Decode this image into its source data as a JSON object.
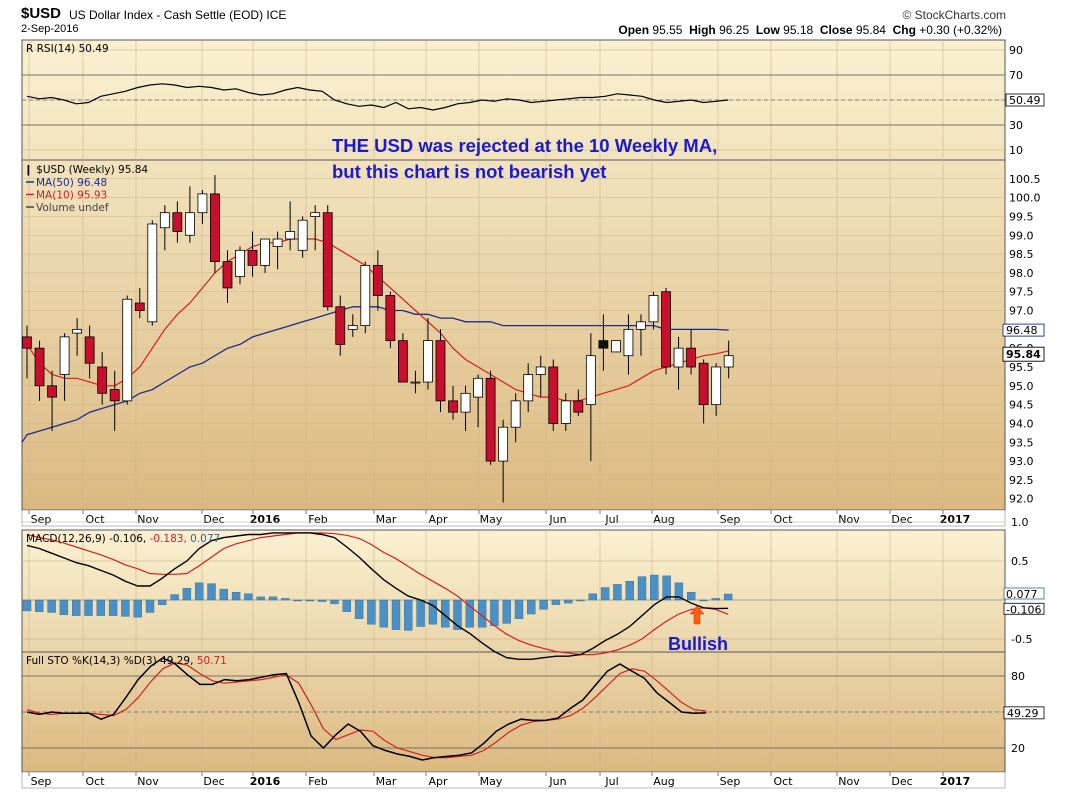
{
  "header": {
    "symbol": "$USD",
    "description": "US Dollar Index - Cash Settle (EOD) ICE",
    "date": "2-Sep-2016",
    "source": "© StockCharts.com",
    "open_label": "Open",
    "open": "95.55",
    "high_label": "High",
    "high": "96.25",
    "low_label": "Low",
    "low": "95.18",
    "close_label": "Close",
    "close": "95.84",
    "chg_label": "Chg",
    "chg": "+0.30 (+0.32%)"
  },
  "annotations": {
    "line1": "THE USD  was rejected at the 10 Weekly MA,",
    "line2": "but this chart is not bearish yet",
    "bullish": "Bullish"
  },
  "colors": {
    "up": "#ffffff",
    "down": "#c8102e",
    "ma50": "#1c2b8f",
    "ma10": "#d42020",
    "histogram": "#4a90c4",
    "panel_top": "#faf1d2",
    "panel_bottom": "#dbb981",
    "annotation": "#1a1ad0",
    "arrow": "#ff5a10"
  },
  "chart_data": [
    {
      "type": "line",
      "title": "RSI(14) 50.49",
      "ylim": [
        0,
        100
      ],
      "yticks": [
        90,
        70,
        50,
        30,
        10
      ],
      "last_value_label": "50.49",
      "y": [
        53,
        51,
        52,
        50,
        47,
        48,
        53,
        55,
        57,
        60,
        62,
        63,
        62,
        60,
        61,
        60,
        58,
        59,
        56,
        54,
        55,
        58,
        60,
        58,
        57,
        50,
        47,
        45,
        46,
        44,
        48,
        43,
        44,
        42,
        44,
        47,
        48,
        50,
        49,
        51,
        50,
        48,
        49,
        50,
        51,
        52,
        52,
        53,
        55,
        54,
        53,
        50,
        48,
        49,
        50,
        48,
        49,
        50
      ]
    },
    {
      "type": "candlestick",
      "title": "$USD (Weekly) 95.84",
      "legend": [
        "MA(50) 96.48",
        "MA(10) 95.93",
        "Volume undef"
      ],
      "ylim": [
        91.7,
        101.0
      ],
      "yticks": [
        100.5,
        100.0,
        99.5,
        99.0,
        98.5,
        98.0,
        97.5,
        97.0,
        96.5,
        96.0,
        95.5,
        95.0,
        94.5,
        94.0,
        93.5,
        93.0,
        92.5,
        92.0
      ],
      "last_value_labels": {
        "ma50": "96.48",
        "close": "95.84"
      },
      "x_months": [
        "Sep",
        "Oct",
        "Nov",
        "Dec",
        "2016",
        "Feb",
        "Mar",
        "Apr",
        "May",
        "Jun",
        "Jul",
        "Aug",
        "Sep",
        "Oct",
        "Nov",
        "Dec",
        "2017"
      ],
      "ohlc": [
        [
          96.3,
          96.6,
          95.2,
          96.0
        ],
        [
          96.0,
          96.2,
          94.6,
          95.0
        ],
        [
          95.0,
          95.4,
          93.8,
          94.7
        ],
        [
          95.3,
          96.4,
          94.6,
          96.3
        ],
        [
          96.4,
          96.8,
          95.8,
          96.5
        ],
        [
          96.3,
          96.6,
          95.2,
          95.6
        ],
        [
          95.5,
          95.9,
          94.5,
          94.8
        ],
        [
          94.9,
          95.4,
          93.8,
          94.6
        ],
        [
          94.6,
          97.4,
          94.5,
          97.3
        ],
        [
          97.2,
          97.6,
          96.8,
          97.0
        ],
        [
          96.7,
          99.4,
          96.6,
          99.3
        ],
        [
          99.2,
          99.8,
          98.6,
          99.6
        ],
        [
          99.6,
          99.9,
          98.8,
          99.1
        ],
        [
          99.0,
          100.3,
          98.8,
          99.6
        ],
        [
          99.6,
          100.2,
          99.3,
          100.1
        ],
        [
          100.1,
          100.6,
          98.0,
          98.3
        ],
        [
          98.3,
          98.6,
          97.2,
          97.6
        ],
        [
          97.9,
          98.7,
          97.7,
          98.6
        ],
        [
          98.6,
          99.1,
          97.9,
          98.2
        ],
        [
          98.2,
          98.9,
          98.0,
          98.9
        ],
        [
          98.7,
          99.1,
          98.1,
          98.9
        ],
        [
          98.9,
          99.9,
          98.6,
          99.1
        ],
        [
          98.6,
          99.5,
          98.4,
          99.4
        ],
        [
          99.5,
          99.8,
          98.6,
          99.6
        ],
        [
          99.6,
          99.8,
          97.0,
          97.1
        ],
        [
          97.1,
          97.4,
          95.8,
          96.1
        ],
        [
          96.5,
          96.9,
          96.3,
          96.6
        ],
        [
          96.6,
          98.3,
          96.4,
          98.2
        ],
        [
          98.2,
          98.6,
          97.0,
          97.4
        ],
        [
          97.4,
          97.5,
          96.0,
          96.2
        ],
        [
          96.2,
          96.4,
          95.1,
          95.1
        ],
        [
          95.1,
          95.4,
          94.8,
          95.1
        ],
        [
          95.1,
          96.8,
          94.9,
          96.2
        ],
        [
          96.2,
          96.5,
          94.3,
          94.6
        ],
        [
          94.6,
          95.0,
          94.1,
          94.3
        ],
        [
          94.3,
          95.0,
          93.8,
          94.8
        ],
        [
          94.7,
          95.3,
          93.9,
          95.2
        ],
        [
          95.2,
          95.4,
          92.9,
          93.0
        ],
        [
          93.0,
          94.1,
          91.9,
          93.9
        ],
        [
          93.9,
          94.8,
          93.5,
          94.6
        ],
        [
          94.6,
          95.6,
          94.3,
          95.3
        ],
        [
          95.3,
          95.8,
          94.7,
          95.5
        ],
        [
          95.5,
          95.7,
          93.8,
          94.0
        ],
        [
          94.0,
          94.8,
          93.8,
          94.6
        ],
        [
          94.6,
          94.9,
          94.2,
          94.3
        ],
        [
          94.5,
          96.4,
          93.0,
          95.8
        ],
        [
          96.2,
          96.9,
          95.4,
          96.0
        ],
        [
          95.9,
          96.2,
          95.9,
          96.2
        ],
        [
          95.8,
          96.9,
          95.3,
          96.5
        ],
        [
          96.5,
          96.9,
          95.8,
          96.7
        ],
        [
          96.7,
          97.5,
          96.5,
          97.4
        ],
        [
          97.5,
          97.6,
          95.3,
          95.5
        ],
        [
          95.5,
          96.3,
          94.9,
          96.0
        ],
        [
          96.0,
          96.5,
          95.3,
          95.5
        ],
        [
          95.6,
          95.7,
          94.0,
          94.5
        ],
        [
          94.5,
          95.6,
          94.2,
          95.5
        ],
        [
          95.5,
          96.2,
          95.2,
          95.8
        ]
      ],
      "ma10": [
        96.1,
        95.6,
        95.3,
        95.2,
        95.2,
        95.1,
        95.0,
        95.0,
        95.2,
        95.5,
        96.0,
        96.5,
        96.9,
        97.2,
        97.6,
        98.0,
        98.3,
        98.5,
        98.7,
        98.8,
        98.8,
        98.9,
        98.9,
        98.9,
        98.8,
        98.6,
        98.4,
        98.2,
        97.9,
        97.6,
        97.3,
        97.0,
        96.7,
        96.4,
        96.0,
        95.7,
        95.5,
        95.3,
        95.1,
        94.9,
        94.8,
        94.7,
        94.7,
        94.6,
        94.6,
        94.7,
        94.8,
        94.9,
        95.0,
        95.2,
        95.4,
        95.5,
        95.6,
        95.7,
        95.8,
        95.85,
        95.93
      ],
      "ma50": [
        93.7,
        93.8,
        93.9,
        94.0,
        94.1,
        94.3,
        94.4,
        94.5,
        94.6,
        94.8,
        94.9,
        95.1,
        95.3,
        95.5,
        95.6,
        95.8,
        96.0,
        96.1,
        96.3,
        96.4,
        96.5,
        96.6,
        96.7,
        96.8,
        96.9,
        97.0,
        97.1,
        97.1,
        97.1,
        97.0,
        97.0,
        96.9,
        96.9,
        96.8,
        96.8,
        96.7,
        96.7,
        96.7,
        96.6,
        96.6,
        96.6,
        96.6,
        96.6,
        96.6,
        96.6,
        96.6,
        96.6,
        96.6,
        96.6,
        96.6,
        96.6,
        96.5,
        96.5,
        96.5,
        96.5,
        96.5,
        96.48
      ]
    },
    {
      "type": "line",
      "title": "MACD(12,26,9) -0.106, -0.183, 0.077",
      "title_parts": [
        "MACD(12,26,9) -0.106,",
        " -0.183,",
        " 0.077"
      ],
      "ylim": [
        -1.0,
        1.2
      ],
      "yticks": [
        1.0,
        0.5,
        -0.5
      ],
      "last_value_labels": [
        "0.077",
        "-0.106"
      ],
      "macd": [
        0.7,
        0.66,
        0.6,
        0.54,
        0.48,
        0.44,
        0.38,
        0.32,
        0.24,
        0.18,
        0.18,
        0.28,
        0.4,
        0.5,
        0.66,
        0.76,
        0.8,
        0.82,
        0.84,
        0.84,
        0.86,
        0.86,
        0.86,
        0.86,
        0.84,
        0.8,
        0.68,
        0.55,
        0.4,
        0.26,
        0.15,
        0.05,
        0.0,
        -0.07,
        -0.2,
        -0.33,
        -0.43,
        -0.55,
        -0.66,
        -0.74,
        -0.76,
        -0.76,
        -0.74,
        -0.72,
        -0.72,
        -0.7,
        -0.62,
        -0.52,
        -0.44,
        -0.34,
        -0.2,
        -0.06,
        0.04,
        0.04,
        -0.04,
        -0.1,
        -0.11,
        -0.106
      ],
      "signal": [
        0.84,
        0.8,
        0.77,
        0.73,
        0.68,
        0.63,
        0.58,
        0.52,
        0.45,
        0.4,
        0.34,
        0.33,
        0.33,
        0.34,
        0.44,
        0.55,
        0.66,
        0.72,
        0.76,
        0.8,
        0.82,
        0.84,
        0.86,
        0.86,
        0.86,
        0.85,
        0.83,
        0.79,
        0.71,
        0.61,
        0.53,
        0.43,
        0.33,
        0.24,
        0.15,
        0.05,
        -0.08,
        -0.2,
        -0.33,
        -0.44,
        -0.52,
        -0.58,
        -0.62,
        -0.66,
        -0.68,
        -0.7,
        -0.7,
        -0.68,
        -0.64,
        -0.58,
        -0.5,
        -0.38,
        -0.27,
        -0.18,
        -0.12,
        -0.1,
        -0.12,
        -0.183
      ],
      "histogram": [
        -0.14,
        -0.15,
        -0.16,
        -0.19,
        -0.2,
        -0.2,
        -0.2,
        -0.2,
        -0.21,
        -0.22,
        -0.16,
        -0.06,
        0.07,
        0.15,
        0.22,
        0.21,
        0.14,
        0.1,
        0.08,
        0.04,
        0.04,
        0.02,
        0.0,
        0.0,
        -0.02,
        -0.05,
        -0.15,
        -0.24,
        -0.31,
        -0.35,
        -0.38,
        -0.39,
        -0.34,
        -0.31,
        -0.35,
        -0.38,
        -0.35,
        -0.35,
        -0.33,
        -0.3,
        -0.24,
        -0.18,
        -0.12,
        -0.06,
        -0.04,
        0.0,
        0.08,
        0.16,
        0.2,
        0.24,
        0.3,
        0.32,
        0.31,
        0.22,
        0.1,
        0.0,
        0.02,
        0.077
      ]
    },
    {
      "type": "line",
      "title": "Full STO %K(14,3) %D(3) 49.29, 50.71",
      "title_parts": [
        "Full STO %K(14,3) %D(3) 49.29,",
        " 50.71"
      ],
      "ylim": [
        0,
        100
      ],
      "yticks": [
        80,
        20
      ],
      "last_value_label": "49.29",
      "k": [
        50,
        48,
        50,
        49,
        49,
        49,
        44,
        48,
        62,
        77,
        88,
        95,
        90,
        81,
        73,
        73,
        77,
        76,
        77,
        79,
        81,
        82,
        58,
        30,
        20,
        31,
        40,
        34,
        22,
        18,
        15,
        13,
        10,
        12,
        13,
        14,
        16,
        24,
        34,
        40,
        44,
        43,
        43,
        45,
        53,
        60,
        72,
        84,
        90,
        84,
        78,
        66,
        58,
        50,
        49,
        49.29
      ],
      "d": [
        52,
        49,
        48,
        49,
        49,
        49,
        48,
        47,
        52,
        62,
        75,
        86,
        91,
        89,
        82,
        76,
        74,
        75,
        76,
        77,
        79,
        81,
        74,
        56,
        36,
        27,
        31,
        35,
        34,
        26,
        20,
        17,
        14,
        12,
        12,
        13,
        14,
        18,
        25,
        33,
        39,
        42,
        43,
        44,
        47,
        53,
        62,
        72,
        82,
        86,
        84,
        76,
        67,
        58,
        52,
        50.71
      ]
    }
  ]
}
